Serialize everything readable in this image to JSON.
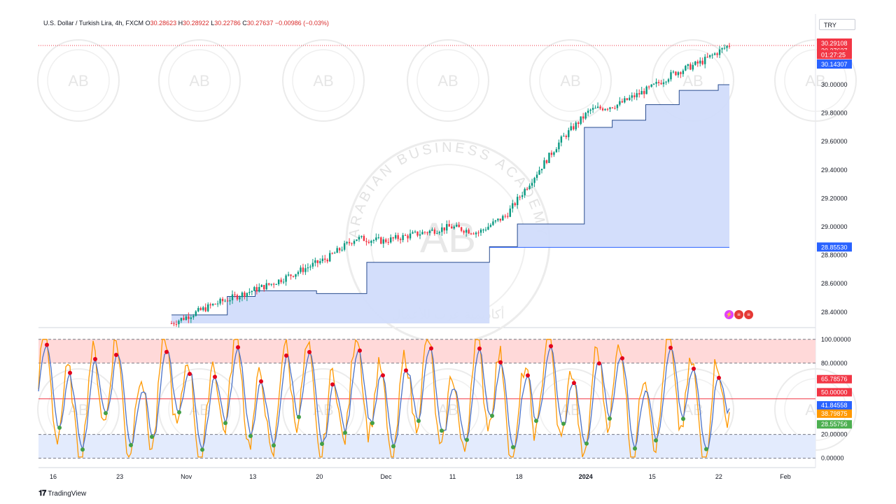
{
  "header": {
    "symbol": "U.S. Dollar / Turkish Lira, 4h, FXCM",
    "o_label": "O",
    "o_value": "30.28623",
    "h_label": "H",
    "h_value": "30.28922",
    "l_label": "L",
    "l_value": "30.22786",
    "c_label": "C",
    "c_value": "30.27637",
    "change": "−0.00986 (−0.03%)"
  },
  "currency_button": "TRY",
  "price_axis": {
    "ticks": [
      "30.00000",
      "29.80000",
      "29.60000",
      "29.40000",
      "29.20000",
      "29.00000",
      "28.80000",
      "28.60000",
      "28.40000"
    ],
    "tick_values": [
      30.0,
      29.8,
      29.6,
      29.4,
      29.2,
      29.0,
      28.8,
      28.6,
      28.4
    ],
    "range": [
      28.32,
      30.36
    ],
    "labels": [
      {
        "text": "30.29108",
        "value": 30.29108,
        "color": "#f23645"
      },
      {
        "text": "30.27637",
        "value": 30.24,
        "color": "#f23645"
      },
      {
        "text": "01:27:25",
        "value": 30.21,
        "color": "#f23645"
      },
      {
        "text": "30.14307",
        "value": 30.14307,
        "color": "#2962ff"
      },
      {
        "text": "28.85530",
        "value": 28.8553,
        "color": "#2962ff"
      }
    ]
  },
  "osc_axis": {
    "ticks": [
      "100.00000",
      "80.00000",
      "20.00000",
      "0.00000"
    ],
    "tick_values": [
      100,
      80,
      20,
      0
    ],
    "range": [
      -2,
      104
    ],
    "labels": [
      {
        "text": "65.78576",
        "value": 66.5,
        "color": "#f23645"
      },
      {
        "text": "50.00000",
        "value": 55.5,
        "color": "#f23645"
      },
      {
        "text": "41.84558",
        "value": 44.5,
        "color": "#2962ff"
      },
      {
        "text": "38.79875",
        "value": 37.5,
        "color": "#ff9800"
      },
      {
        "text": "28.55756",
        "value": 28.5,
        "color": "#4caf50"
      }
    ]
  },
  "time_axis": [
    "16",
    "23",
    "Nov",
    "13",
    "20",
    "Dec",
    "11",
    "18",
    "2024",
    "15",
    "22",
    "Feb"
  ],
  "watermark_text": "ARABIAN BUSINESS ACADEMY",
  "watermark_logo": "AB",
  "watermark_arabic": "أكاديمية عرب للأعمال",
  "branding": "TradingView",
  "chart_data": {
    "type": "candlestick",
    "title": "U.S. Dollar / Turkish Lira, 4h, FXCM",
    "price_series": {
      "start": 28.32,
      "end": 30.28,
      "waypoints": [
        [
          0,
          28.32
        ],
        [
          0.08,
          28.46
        ],
        [
          0.18,
          28.6
        ],
        [
          0.28,
          28.78
        ],
        [
          0.33,
          28.92
        ],
        [
          0.38,
          28.9
        ],
        [
          0.44,
          28.95
        ],
        [
          0.5,
          29.0
        ],
        [
          0.55,
          28.96
        ],
        [
          0.6,
          29.08
        ],
        [
          0.64,
          29.3
        ],
        [
          0.7,
          29.62
        ],
        [
          0.75,
          29.82
        ],
        [
          0.8,
          29.86
        ],
        [
          0.86,
          29.98
        ],
        [
          0.9,
          30.08
        ],
        [
          0.95,
          30.16
        ],
        [
          1.0,
          30.28
        ]
      ]
    },
    "support_steps": [
      {
        "from": 0.0,
        "to": 0.1,
        "value": 28.38
      },
      {
        "from": 0.1,
        "to": 0.15,
        "value": 28.51
      },
      {
        "from": 0.15,
        "to": 0.26,
        "value": 28.55
      },
      {
        "from": 0.26,
        "to": 0.35,
        "value": 28.53
      },
      {
        "from": 0.35,
        "to": 0.43,
        "value": 28.75
      },
      {
        "from": 0.43,
        "to": 0.57,
        "value": 28.75
      },
      {
        "from": 0.57,
        "to": 0.62,
        "value": 28.86
      },
      {
        "from": 0.62,
        "to": 0.74,
        "value": 29.02
      },
      {
        "from": 0.74,
        "to": 0.79,
        "value": 29.7
      },
      {
        "from": 0.79,
        "to": 0.85,
        "value": 29.75
      },
      {
        "from": 0.85,
        "to": 0.91,
        "value": 29.86
      },
      {
        "from": 0.91,
        "to": 0.98,
        "value": 29.96
      },
      {
        "from": 0.98,
        "to": 1.0,
        "value": 30.0
      }
    ],
    "oscillator": {
      "levels": [
        0,
        20,
        50,
        80,
        100
      ],
      "overbought": [
        80,
        100
      ],
      "oversold": [
        0,
        20
      ],
      "fast_last": 38.79875,
      "slow_last": 41.84558
    },
    "colors": {
      "up": "#089981",
      "down": "#f23645",
      "fill": "#d1dcfb",
      "fast": "#ff9800",
      "slow": "#4a72c8",
      "ob": "#ffd9d9",
      "os": "#e3ebfd"
    }
  }
}
